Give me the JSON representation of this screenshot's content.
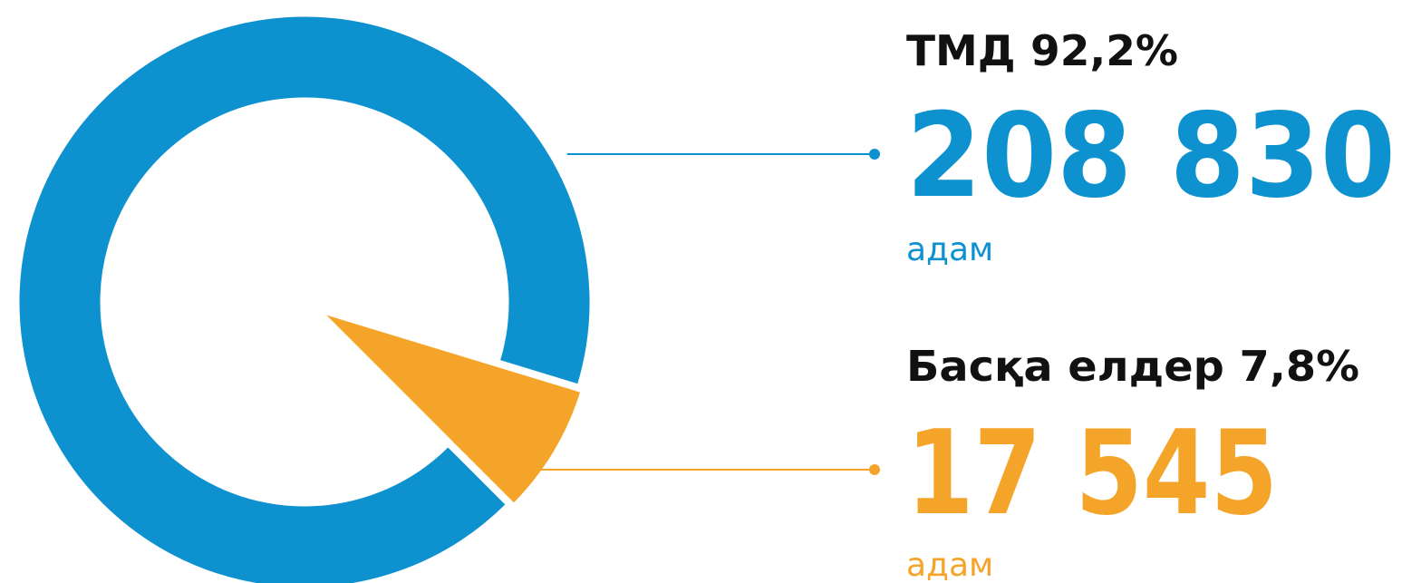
{
  "chart_data": {
    "type": "pie",
    "categories": [
      "ТМД",
      "Басқа елдер"
    ],
    "values": [
      92.2,
      7.8
    ],
    "value_labels": [
      "92,2%",
      "7,8%"
    ],
    "counts": [
      208830,
      17545
    ],
    "count_labels": [
      "208 830",
      "17 545"
    ],
    "unit": "адам",
    "colors": [
      "#0e92cf",
      "#f5a42a"
    ]
  }
}
